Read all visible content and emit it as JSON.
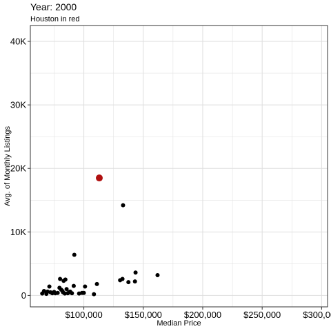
{
  "chart_data": {
    "type": "scatter",
    "title": "Year: 2000",
    "subtitle": "Houston in red",
    "xlabel": "Median Price",
    "ylabel": "Avg. of Monthly Listings",
    "xlim": [
      55000,
      305000
    ],
    "ylim": [
      -1800,
      42500
    ],
    "x_ticks": [
      {
        "value": 100000,
        "label": "$100,000"
      },
      {
        "value": 150000,
        "label": "$150,000"
      },
      {
        "value": 200000,
        "label": "$200,000"
      },
      {
        "value": 250000,
        "label": "$250,000"
      },
      {
        "value": 300000,
        "label": "$300,000"
      }
    ],
    "y_ticks": [
      {
        "value": 0,
        "label": "0"
      },
      {
        "value": 10000,
        "label": "10K"
      },
      {
        "value": 20000,
        "label": "20K"
      },
      {
        "value": 30000,
        "label": "30K"
      },
      {
        "value": 40000,
        "label": "40K"
      }
    ],
    "grid": true,
    "colors": {
      "highlight": "#b01010",
      "points": "#000000",
      "grid": "#dedede",
      "panel_border": "#333333"
    },
    "highlight": {
      "x": 113000,
      "y": 18500
    },
    "points": [
      [
        65000,
        300
      ],
      [
        66500,
        700
      ],
      [
        68500,
        250
      ],
      [
        69500,
        600
      ],
      [
        71000,
        1400
      ],
      [
        72000,
        500
      ],
      [
        73500,
        350
      ],
      [
        75000,
        550
      ],
      [
        76000,
        350
      ],
      [
        78000,
        400
      ],
      [
        79500,
        1200
      ],
      [
        80000,
        2600
      ],
      [
        81000,
        900
      ],
      [
        82000,
        700
      ],
      [
        82500,
        500
      ],
      [
        83000,
        2300
      ],
      [
        84000,
        300
      ],
      [
        84500,
        2500
      ],
      [
        85500,
        1000
      ],
      [
        86500,
        350
      ],
      [
        87500,
        500
      ],
      [
        88500,
        600
      ],
      [
        90000,
        350
      ],
      [
        91500,
        1500
      ],
      [
        92000,
        6400
      ],
      [
        96000,
        300
      ],
      [
        98500,
        400
      ],
      [
        100000,
        400
      ],
      [
        101000,
        1400
      ],
      [
        108500,
        200
      ],
      [
        111000,
        1800
      ],
      [
        130500,
        2400
      ],
      [
        132500,
        2600
      ],
      [
        133000,
        14200
      ],
      [
        137500,
        2100
      ],
      [
        143000,
        2200
      ],
      [
        143500,
        3600
      ],
      [
        162000,
        3200
      ]
    ]
  }
}
